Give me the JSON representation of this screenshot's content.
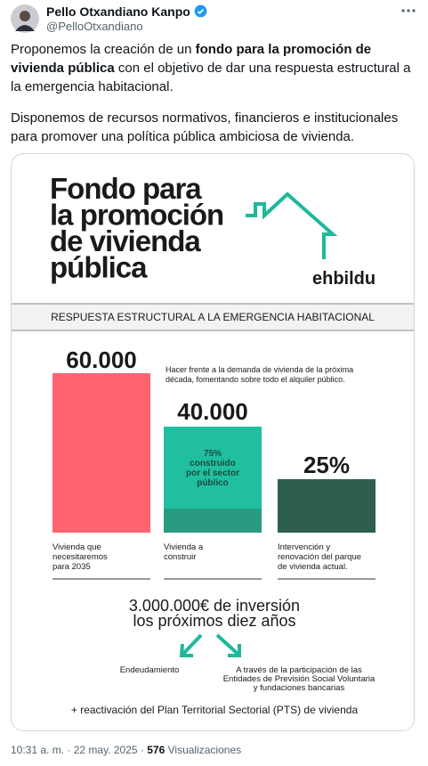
{
  "header": {
    "name": "Pello Otxandiano Kanpo",
    "handle": "@PelloOtxandiano"
  },
  "post": {
    "paragraph_1": [
      "Proponemos la creación de un ",
      "fondo para la promoción de vivienda pública",
      " con el objetivo de dar una respuesta estructural a la emergencia habitacional."
    ],
    "paragraph_2": "Disponemos de recursos normativos, financieros e institucionales para promover una política pública ambiciosa de vivienda."
  },
  "infographic": {
    "title": [
      "Fondo para",
      "la promoción",
      "de vivienda",
      "pública"
    ],
    "brand": "ehbildu",
    "subtitle": "RESPUESTA ESTRUCTURAL A LA EMERGENCIA HABITACIONAL",
    "description": [
      "Hacer frente a la demanda de vivienda de la próxima",
      "década, fomentando sobre todo el alquiler público."
    ],
    "bars": [
      {
        "value": "60.000",
        "label": [
          "Vivienda que",
          "necesitaremos",
          "para 2035"
        ]
      },
      {
        "value": "40.000",
        "label": [
          "Vivienda a",
          "construir"
        ],
        "note": [
          "75%",
          "construido",
          "por el sector",
          "público"
        ]
      },
      {
        "value": "25%",
        "label": [
          "Intervención y",
          "renovación del parque",
          "de vivienda actual."
        ]
      }
    ],
    "investment": [
      "3.000.000€ de inversión",
      "los próximos diez años"
    ],
    "funding_left": "Endeudamiento",
    "funding_right": [
      "A través de la participación de las",
      "Entidades de Previsión Social Voluntaria",
      "y fundaciones bancarias"
    ],
    "footer": "+ reactivación del Plan Territorial Sectorial (PTS) de vivienda"
  },
  "meta": {
    "time": "10:31 a. m.",
    "separator": "·",
    "date": "22 may. 2025",
    "views": "576",
    "views_label": "Visualizaciones"
  }
}
